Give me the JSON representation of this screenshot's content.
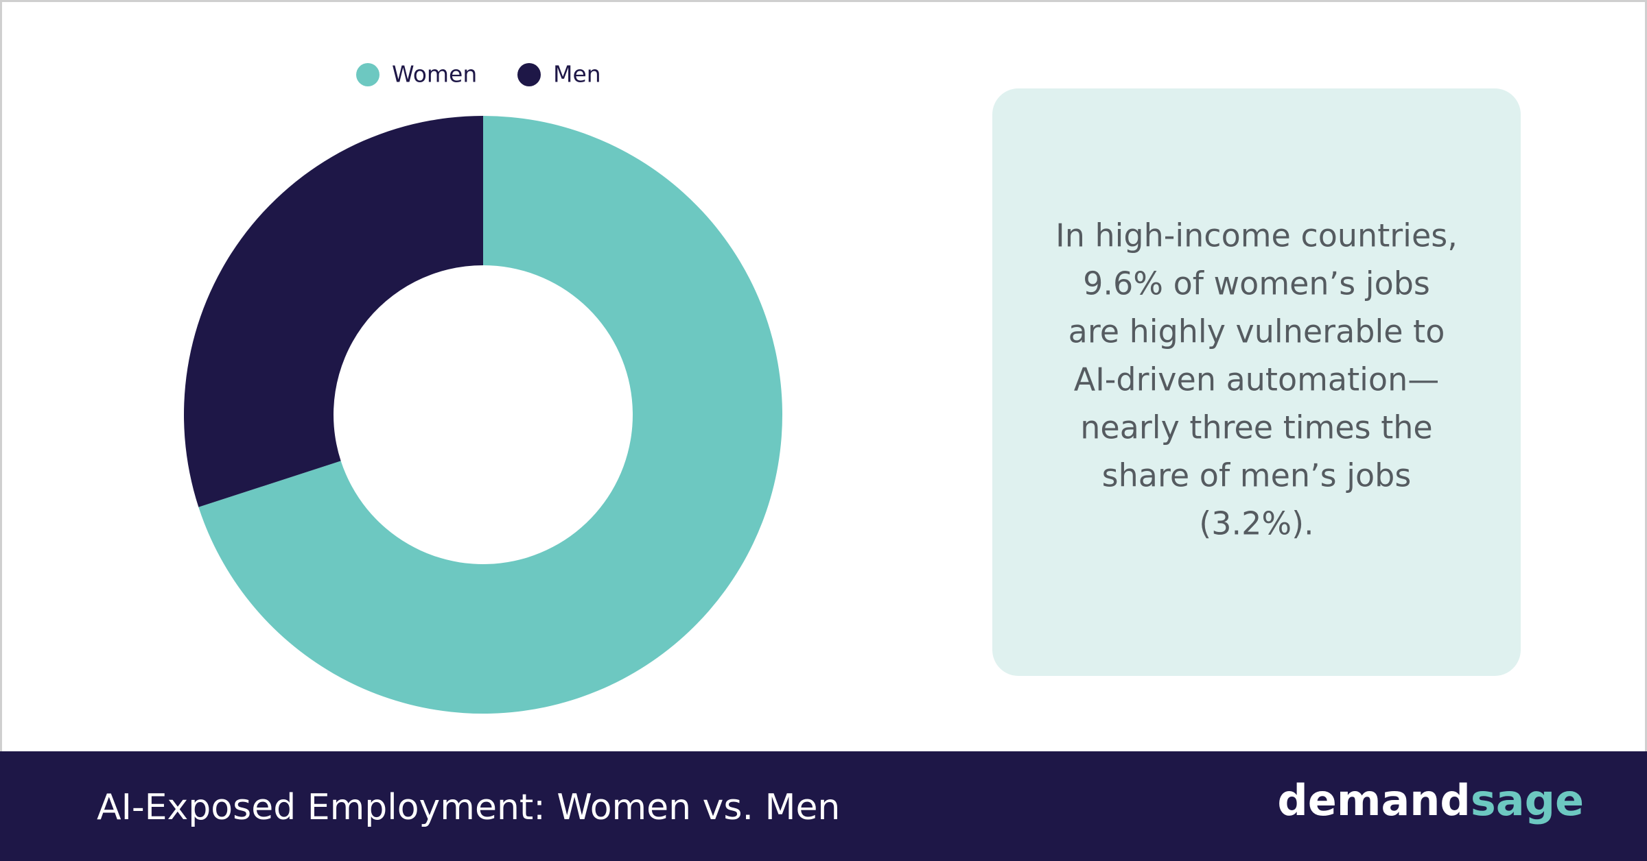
{
  "chart_data": {
    "type": "donut",
    "title": "AI-Exposed Employment: Women vs. Men",
    "categories": [
      "Women",
      "Men"
    ],
    "values": [
      70,
      30
    ],
    "colors": [
      "#6dc8c1",
      "#1e1747"
    ],
    "legend": "top"
  },
  "callout": {
    "lines": [
      "In high-income countries,",
      "9.6% of women’s jobs",
      "are highly vulnerable to",
      "AI-driven automation—",
      "nearly three times the",
      "share of men’s jobs",
      "(3.2%)."
    ]
  },
  "logo": {
    "first": "demand",
    "second": "sage"
  }
}
